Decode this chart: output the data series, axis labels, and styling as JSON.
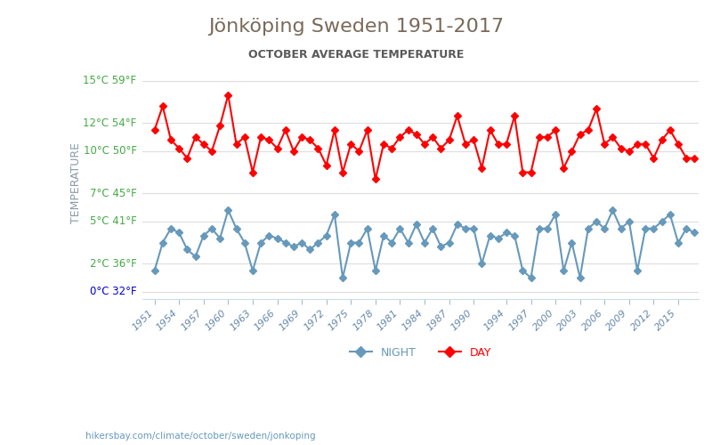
{
  "title": "Jönköping Sweden 1951-2017",
  "subtitle": "OCTOBER AVERAGE TEMPERATURE",
  "ylabel": "TEMPERATURE",
  "background_color": "#ffffff",
  "title_color": "#7a6a5a",
  "subtitle_color": "#5a5a5a",
  "ylabel_color": "#8a9aaa",
  "grid_color": "#dddddd",
  "yticks_celsius": [
    0,
    2,
    5,
    7,
    10,
    12,
    15
  ],
  "yticks_fahrenheit": [
    32,
    36,
    41,
    45,
    50,
    54,
    59
  ],
  "ytick_color_zero": "#0000cc",
  "ytick_color_other": "#44aa44",
  "years": [
    1951,
    1952,
    1953,
    1954,
    1955,
    1956,
    1957,
    1958,
    1959,
    1960,
    1961,
    1962,
    1963,
    1964,
    1965,
    1966,
    1967,
    1968,
    1969,
    1970,
    1971,
    1972,
    1973,
    1974,
    1975,
    1976,
    1977,
    1978,
    1979,
    1980,
    1981,
    1982,
    1983,
    1984,
    1985,
    1986,
    1987,
    1988,
    1989,
    1990,
    1991,
    1992,
    1993,
    1994,
    1995,
    1996,
    1997,
    1998,
    1999,
    2000,
    2001,
    2002,
    2003,
    2004,
    2005,
    2006,
    2007,
    2008,
    2009,
    2010,
    2011,
    2012,
    2013,
    2014,
    2015,
    2016,
    2017
  ],
  "day_temps": [
    11.5,
    13.2,
    10.8,
    10.2,
    9.5,
    11.0,
    10.5,
    10.0,
    11.8,
    14.0,
    10.5,
    11.0,
    8.5,
    11.0,
    10.8,
    10.2,
    11.5,
    10.0,
    11.0,
    10.8,
    10.2,
    9.0,
    11.5,
    8.5,
    10.5,
    10.0,
    11.5,
    8.0,
    10.5,
    10.2,
    11.0,
    11.5,
    11.2,
    10.5,
    11.0,
    10.2,
    10.8,
    12.5,
    10.5,
    10.8,
    8.8,
    11.5,
    10.5,
    10.5,
    12.5,
    8.5,
    8.5,
    11.0,
    11.0,
    11.5,
    8.8,
    10.0,
    11.2,
    11.5,
    13.0,
    10.5,
    11.0,
    10.2,
    10.0,
    10.5,
    10.5,
    9.5,
    10.8,
    11.5,
    10.5,
    9.5,
    9.5
  ],
  "night_temps": [
    1.5,
    3.5,
    4.5,
    4.2,
    3.0,
    2.5,
    4.0,
    4.5,
    3.8,
    5.8,
    4.5,
    3.5,
    1.5,
    3.5,
    4.0,
    3.8,
    3.5,
    3.2,
    3.5,
    3.0,
    3.5,
    4.0,
    5.5,
    1.0,
    3.5,
    3.5,
    4.5,
    1.5,
    4.0,
    3.5,
    4.5,
    3.5,
    4.8,
    3.5,
    4.5,
    3.2,
    3.5,
    4.8,
    4.5,
    4.5,
    2.0,
    4.0,
    3.8,
    4.2,
    4.0,
    1.5,
    1.0,
    4.5,
    4.5,
    5.5,
    1.5,
    3.5,
    1.0,
    4.5,
    5.0,
    4.5,
    5.8,
    4.5,
    5.0,
    1.5,
    4.5,
    4.5,
    5.0,
    5.5,
    3.5,
    4.5,
    4.2
  ],
  "day_color": "#ff0000",
  "night_color": "#6699bb",
  "day_marker": "D",
  "night_marker": "D",
  "marker_size": 4,
  "line_width": 1.5,
  "xtick_years": [
    1951,
    1954,
    1957,
    1960,
    1963,
    1966,
    1969,
    1972,
    1975,
    1978,
    1981,
    1984,
    1987,
    1990,
    1994,
    1997,
    2000,
    2003,
    2006,
    2009,
    2012,
    2015
  ],
  "footer_text": "hikersbay.com/climate/october/sweden/jonkoping",
  "legend_night": "NIGHT",
  "legend_day": "DAY"
}
